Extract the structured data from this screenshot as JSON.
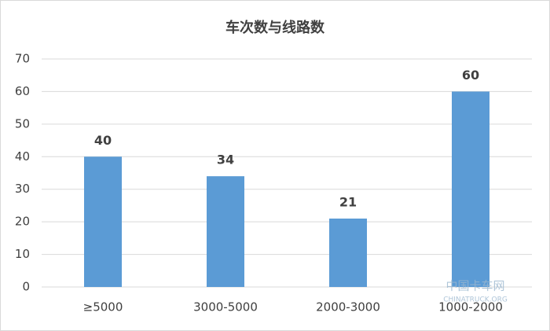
{
  "chart_data": {
    "type": "bar",
    "title": "车次数与线路数",
    "categories": [
      "≥5000",
      "3000-5000",
      "2000-3000",
      "1000-2000"
    ],
    "values": [
      40,
      34,
      21,
      60
    ],
    "color": "#5b9bd5",
    "ylim": [
      0,
      70
    ],
    "yticks": [
      0,
      10,
      20,
      30,
      40,
      50,
      60,
      70
    ],
    "grid": true,
    "data_labels": true,
    "watermark": [
      "中国卡车网",
      "CHINATRUCK.ORG"
    ]
  }
}
